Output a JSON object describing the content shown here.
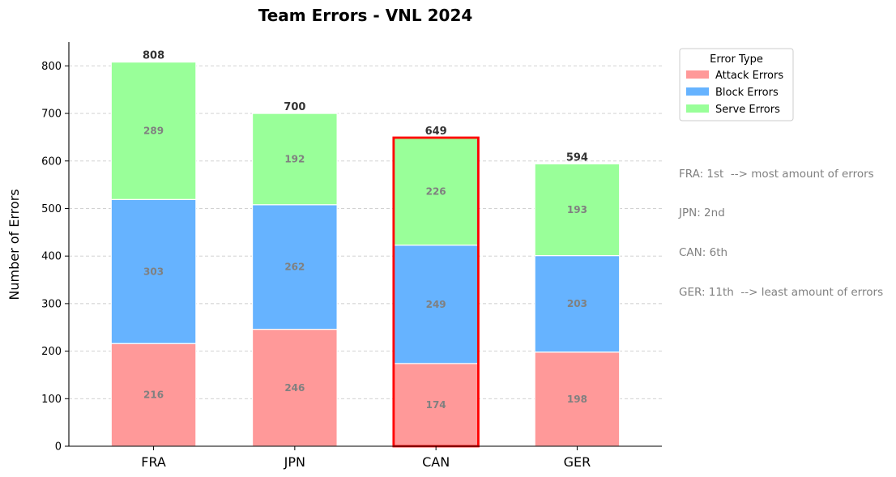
{
  "chart_data": {
    "type": "bar",
    "stacked": true,
    "title": "Team Errors - VNL 2024",
    "xlabel": "",
    "ylabel": "Number of Errors",
    "ylim": [
      0,
      850
    ],
    "yticks": [
      0,
      100,
      200,
      300,
      400,
      500,
      600,
      700,
      800
    ],
    "grid": "y-dashed",
    "categories": [
      "FRA",
      "JPN",
      "CAN",
      "GER"
    ],
    "series": [
      {
        "name": "Attack Errors",
        "color": "#ff9999",
        "values": [
          216,
          246,
          174,
          198
        ]
      },
      {
        "name": "Block Errors",
        "color": "#66b3ff",
        "values": [
          303,
          262,
          249,
          203
        ]
      },
      {
        "name": "Serve Errors",
        "color": "#99ff99",
        "values": [
          289,
          192,
          226,
          193
        ]
      }
    ],
    "totals": [
      808,
      700,
      649,
      594
    ],
    "highlight": {
      "category": "CAN",
      "color": "#ff0000"
    },
    "legend": {
      "title": "Error Type",
      "placement": "upper-right-outside"
    },
    "annotations": [
      "FRA: 1st  --> most amount of errors",
      "JPN: 2nd",
      "CAN: 6th",
      "GER: 11th  --> least amount of errors"
    ]
  }
}
